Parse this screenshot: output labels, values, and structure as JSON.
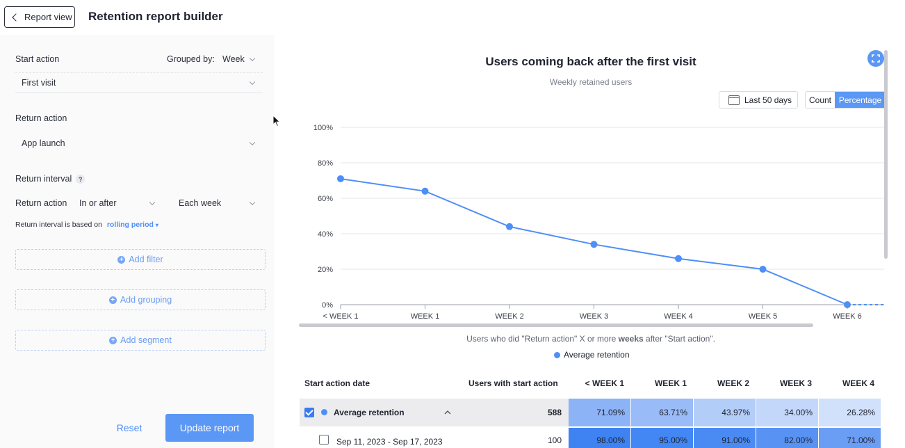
{
  "header": {
    "back_label": "Report view",
    "title": "Retention report builder"
  },
  "builder": {
    "start_action_label": "Start action",
    "grouped_by_label": "Grouped by:",
    "grouped_by_value": "Week",
    "start_action_value": "First visit",
    "return_action_label": "Return action",
    "return_action_value": "App launch",
    "return_interval_label": "Return interval",
    "help_glyph": "?",
    "return_action_row_label": "Return action",
    "condition_value": "In or after",
    "frequency_value": "Each week",
    "interval_basis_label": "Return interval is based on",
    "interval_basis_value": "rolling period",
    "add_filter": "Add filter",
    "add_grouping": "Add grouping",
    "add_segment": "Add segment",
    "reset": "Reset",
    "update": "Update report"
  },
  "chart": {
    "title": "Users coming back after the first visit",
    "subtitle": "Weekly retained users",
    "date_range": "Last 50 days",
    "toggle_count": "Count",
    "toggle_percentage": "Percentage",
    "caption_pre": "Users who did \"Return action\" X or more ",
    "caption_bold": "weeks",
    "caption_post": " after \"Start action\".",
    "accent": "#4e8ef7"
  },
  "chart_data": {
    "type": "line",
    "categories": [
      "< WEEK 1",
      "WEEK 1",
      "WEEK 2",
      "WEEK 3",
      "WEEK 4",
      "WEEK 5",
      "WEEK 6"
    ],
    "series": [
      {
        "name": "Average retention",
        "values": [
          71,
          64,
          44,
          34,
          26,
          20,
          0
        ]
      }
    ],
    "y_ticks": [
      "0%",
      "20%",
      "40%",
      "60%",
      "80%",
      "100%"
    ],
    "ylim": [
      0,
      100
    ],
    "grid": true,
    "legend": "bottom"
  },
  "table": {
    "headers": [
      "Start action date",
      "Users with start action",
      "< WEEK 1",
      "WEEK 1",
      "WEEK 2",
      "WEEK 3",
      "WEEK 4"
    ],
    "avg_row": {
      "label": "Average retention",
      "users": "588",
      "values": [
        "71.09%",
        "63.71%",
        "43.97%",
        "34.00%",
        "26.28%"
      ]
    },
    "row1": {
      "label": "Sep 11, 2023 - Sep 17, 2023",
      "users": "100",
      "values": [
        "98.00%",
        "95.00%",
        "91.00%",
        "82.00%",
        "71.00%"
      ]
    }
  }
}
